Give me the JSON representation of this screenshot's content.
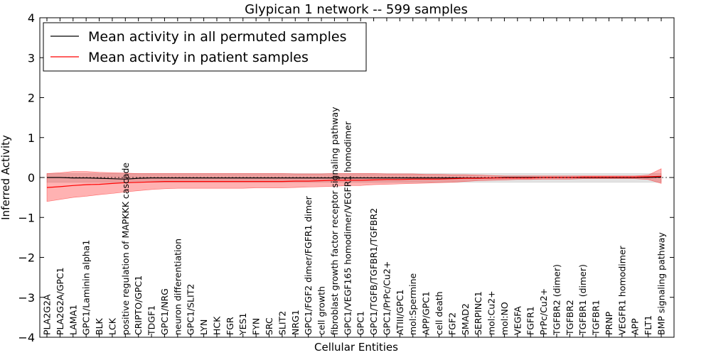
{
  "chart_data": {
    "type": "line",
    "title": "Glypican 1 network -- 599 samples",
    "xlabel": "Cellular Entities",
    "ylabel": "Inferred Activity",
    "ylim": [
      -4,
      4
    ],
    "yticks": [
      "−4",
      "−3",
      "−2",
      "−1",
      "0",
      "1",
      "2",
      "3",
      "4"
    ],
    "yticks_values": [
      -4,
      -3,
      -2,
      -1,
      0,
      1,
      2,
      3,
      4
    ],
    "grid": false,
    "legend_position": "top-left",
    "categories": [
      "PLA2G2A",
      "PLA2G2A/GPC1",
      "LAMA1",
      "GPC1/Laminin alpha1",
      "BLK",
      "LCK",
      "positive regulation of MAPKKK cascade",
      "CRIPTO/GPC1",
      "TDGF1",
      "GPC1/NRG",
      "neuron differentiation",
      "GPC1/SLIT2",
      "LYN",
      "HCK",
      "FGR",
      "YES1",
      "FYN",
      "SRC",
      "SLIT2",
      "NRG1",
      "GPC1/FGF2 dimer/FGFR1 dimer",
      "cell growth",
      "fibroblast growth factor receptor signaling pathway",
      "GPC1/VEGF165 homodimer/VEGFR1 homodimer",
      "GPC1",
      "GPC1/TGFB/TGFBR1/TGFBR2",
      "GPC1/PrPc/Cu2+",
      "ATIII/GPC1",
      "mol:Spermine",
      "APP/GPC1",
      "cell death",
      "FGF2",
      "SMAD2",
      "SERPINC1",
      "mol:Cu2+",
      "mol:NO",
      "VEGFA",
      "FGFR1",
      "PrPc/Cu2+",
      "TGFBR2 (dimer)",
      "TGFBR2",
      "TGFBR1 (dimer)",
      "TGFBR1",
      "PRNP",
      "VEGFR1 homodimer",
      "APP",
      "FLT1",
      "BMP signaling pathway"
    ],
    "series": [
      {
        "name": "Mean activity in all permuted samples",
        "color": "#000000",
        "values": [
          0.0,
          0.0,
          -0.01,
          -0.01,
          -0.02,
          -0.03,
          -0.04,
          -0.02,
          -0.01,
          -0.01,
          -0.01,
          -0.01,
          -0.01,
          -0.01,
          -0.01,
          -0.01,
          -0.01,
          -0.01,
          -0.01,
          -0.01,
          -0.01,
          -0.01,
          -0.01,
          -0.01,
          -0.01,
          -0.01,
          -0.01,
          -0.01,
          -0.01,
          -0.01,
          -0.01,
          -0.01,
          -0.01,
          -0.01,
          -0.01,
          0.0,
          0.0,
          0.0,
          0.0,
          0.0,
          0.0,
          0.0,
          0.0,
          0.0,
          0.0,
          0.0,
          0.0,
          0.01
        ],
        "band_low": [
          -0.12,
          -0.12,
          -0.12,
          -0.12,
          -0.12,
          -0.12,
          -0.12,
          -0.12,
          -0.12,
          -0.12,
          -0.12,
          -0.12,
          -0.12,
          -0.12,
          -0.12,
          -0.12,
          -0.12,
          -0.12,
          -0.12,
          -0.12,
          -0.12,
          -0.12,
          -0.12,
          -0.12,
          -0.12,
          -0.12,
          -0.12,
          -0.12,
          -0.12,
          -0.12,
          -0.12,
          -0.12,
          -0.12,
          -0.12,
          -0.12,
          -0.12,
          -0.12,
          -0.12,
          -0.12,
          -0.12,
          -0.12,
          -0.12,
          -0.12,
          -0.12,
          -0.12,
          -0.12,
          -0.12,
          -0.12
        ],
        "band_high": [
          0.1,
          0.1,
          0.1,
          0.1,
          0.1,
          0.1,
          0.1,
          0.1,
          0.1,
          0.1,
          0.1,
          0.1,
          0.1,
          0.1,
          0.1,
          0.1,
          0.1,
          0.1,
          0.1,
          0.1,
          0.1,
          0.1,
          0.1,
          0.1,
          0.1,
          0.1,
          0.1,
          0.1,
          0.1,
          0.1,
          0.1,
          0.1,
          0.1,
          0.1,
          0.1,
          0.1,
          0.1,
          0.1,
          0.1,
          0.1,
          0.1,
          0.1,
          0.1,
          0.1,
          0.1,
          0.1,
          0.1,
          0.1
        ]
      },
      {
        "name": "Mean activity in patient samples",
        "color": "#ff0000",
        "values": [
          -0.25,
          -0.23,
          -0.2,
          -0.18,
          -0.17,
          -0.15,
          -0.13,
          -0.12,
          -0.11,
          -0.1,
          -0.1,
          -0.1,
          -0.1,
          -0.1,
          -0.1,
          -0.1,
          -0.1,
          -0.1,
          -0.1,
          -0.09,
          -0.09,
          -0.08,
          -0.07,
          -0.07,
          -0.07,
          -0.06,
          -0.05,
          -0.05,
          -0.04,
          -0.04,
          -0.04,
          -0.03,
          -0.02,
          -0.02,
          -0.01,
          -0.01,
          -0.01,
          -0.01,
          0.0,
          0.0,
          0.0,
          0.01,
          0.01,
          0.01,
          0.01,
          0.01,
          0.02,
          0.03
        ],
        "band_low": [
          -0.6,
          -0.55,
          -0.5,
          -0.47,
          -0.43,
          -0.4,
          -0.36,
          -0.33,
          -0.3,
          -0.28,
          -0.27,
          -0.27,
          -0.27,
          -0.27,
          -0.27,
          -0.27,
          -0.26,
          -0.26,
          -0.26,
          -0.25,
          -0.24,
          -0.23,
          -0.22,
          -0.2,
          -0.2,
          -0.18,
          -0.17,
          -0.16,
          -0.15,
          -0.14,
          -0.13,
          -0.12,
          -0.1,
          -0.08,
          -0.07,
          -0.06,
          -0.05,
          -0.05,
          -0.04,
          -0.04,
          -0.04,
          -0.03,
          -0.03,
          -0.03,
          -0.03,
          -0.03,
          -0.05,
          -0.15
        ],
        "band_high": [
          0.1,
          0.12,
          0.15,
          0.15,
          0.13,
          0.12,
          0.11,
          0.1,
          0.1,
          0.1,
          0.1,
          0.1,
          0.1,
          0.1,
          0.1,
          0.1,
          0.1,
          0.1,
          0.1,
          0.09,
          0.09,
          0.09,
          0.1,
          0.1,
          0.1,
          0.1,
          0.09,
          0.09,
          0.09,
          0.08,
          0.08,
          0.07,
          0.07,
          0.06,
          0.05,
          0.04,
          0.04,
          0.04,
          0.04,
          0.04,
          0.04,
          0.04,
          0.04,
          0.04,
          0.04,
          0.04,
          0.06,
          0.22
        ]
      }
    ]
  }
}
